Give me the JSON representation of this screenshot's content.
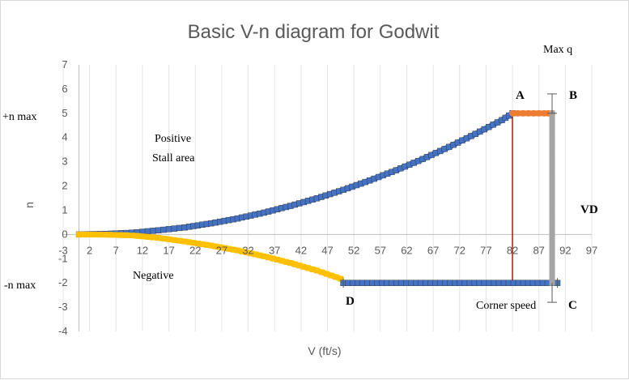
{
  "chart_data": {
    "type": "line",
    "title": "Basic V-n diagram for Godwit",
    "xlabel": "V (ft/s)",
    "ylabel": "n",
    "xlim": [
      -3,
      97
    ],
    "ylim": [
      -4,
      7
    ],
    "x_ticks": [
      -3,
      2,
      7,
      12,
      17,
      22,
      27,
      32,
      37,
      42,
      47,
      52,
      57,
      62,
      67,
      72,
      77,
      82,
      87,
      92,
      97
    ],
    "y_ticks": [
      -4,
      -3,
      -2,
      -1,
      0,
      1,
      2,
      3,
      4,
      5,
      6,
      7
    ],
    "grid": "vertical",
    "series": [
      {
        "color": "#4472c4",
        "marker": "square",
        "points": [
          [
            0,
            0
          ],
          [
            5,
            0.02
          ],
          [
            10,
            0.07
          ],
          [
            15,
            0.17
          ],
          [
            20,
            0.29
          ],
          [
            25,
            0.46
          ],
          [
            30,
            0.66
          ],
          [
            35,
            0.9
          ],
          [
            40,
            1.18
          ],
          [
            45,
            1.49
          ],
          [
            50,
            1.84
          ],
          [
            55,
            2.23
          ],
          [
            60,
            2.65
          ],
          [
            65,
            3.11
          ],
          [
            70,
            3.61
          ],
          [
            75,
            4.15
          ],
          [
            80,
            4.72
          ],
          [
            82,
            5.0
          ]
        ]
      },
      {
        "color": "#ffc000",
        "marker": "square",
        "points": [
          [
            0,
            0
          ],
          [
            5,
            -0.01
          ],
          [
            10,
            -0.04
          ],
          [
            15,
            -0.14
          ],
          [
            20,
            -0.29
          ],
          [
            25,
            -0.46
          ],
          [
            30,
            -0.66
          ],
          [
            35,
            -0.9
          ],
          [
            40,
            -1.18
          ],
          [
            45,
            -1.49
          ],
          [
            49.5,
            -1.83
          ]
        ]
      },
      {
        "color": "#ed7d31",
        "marker": "circle",
        "points": [
          [
            82,
            5
          ],
          [
            84,
            5
          ],
          [
            86,
            5
          ],
          [
            88,
            5
          ],
          [
            89.5,
            5
          ]
        ]
      },
      {
        "color": "#4472c4",
        "marker": "square",
        "points": [
          [
            50,
            -2
          ],
          [
            90.5,
            -2
          ]
        ]
      },
      {
        "color": "#a5a5a5",
        "marker": "square",
        "points": [
          [
            89.5,
            5
          ],
          [
            89.5,
            -2
          ]
        ]
      }
    ],
    "reference_lines": [
      {
        "name": "corner-speed-line",
        "color": "#c00000",
        "x": 82,
        "y_range": [
          -2,
          5
        ]
      }
    ],
    "annotations": {
      "max_q": "Max q",
      "point_a": "A",
      "point_b": "B",
      "point_c": "C",
      "point_d": "D",
      "pos_n_max": "+n max",
      "neg_n_max": "-n max",
      "positive_stall": [
        "Positive",
        "Stall area"
      ],
      "negative": "Negative",
      "corner_speed": "Corner speed",
      "vd": "VD"
    }
  }
}
